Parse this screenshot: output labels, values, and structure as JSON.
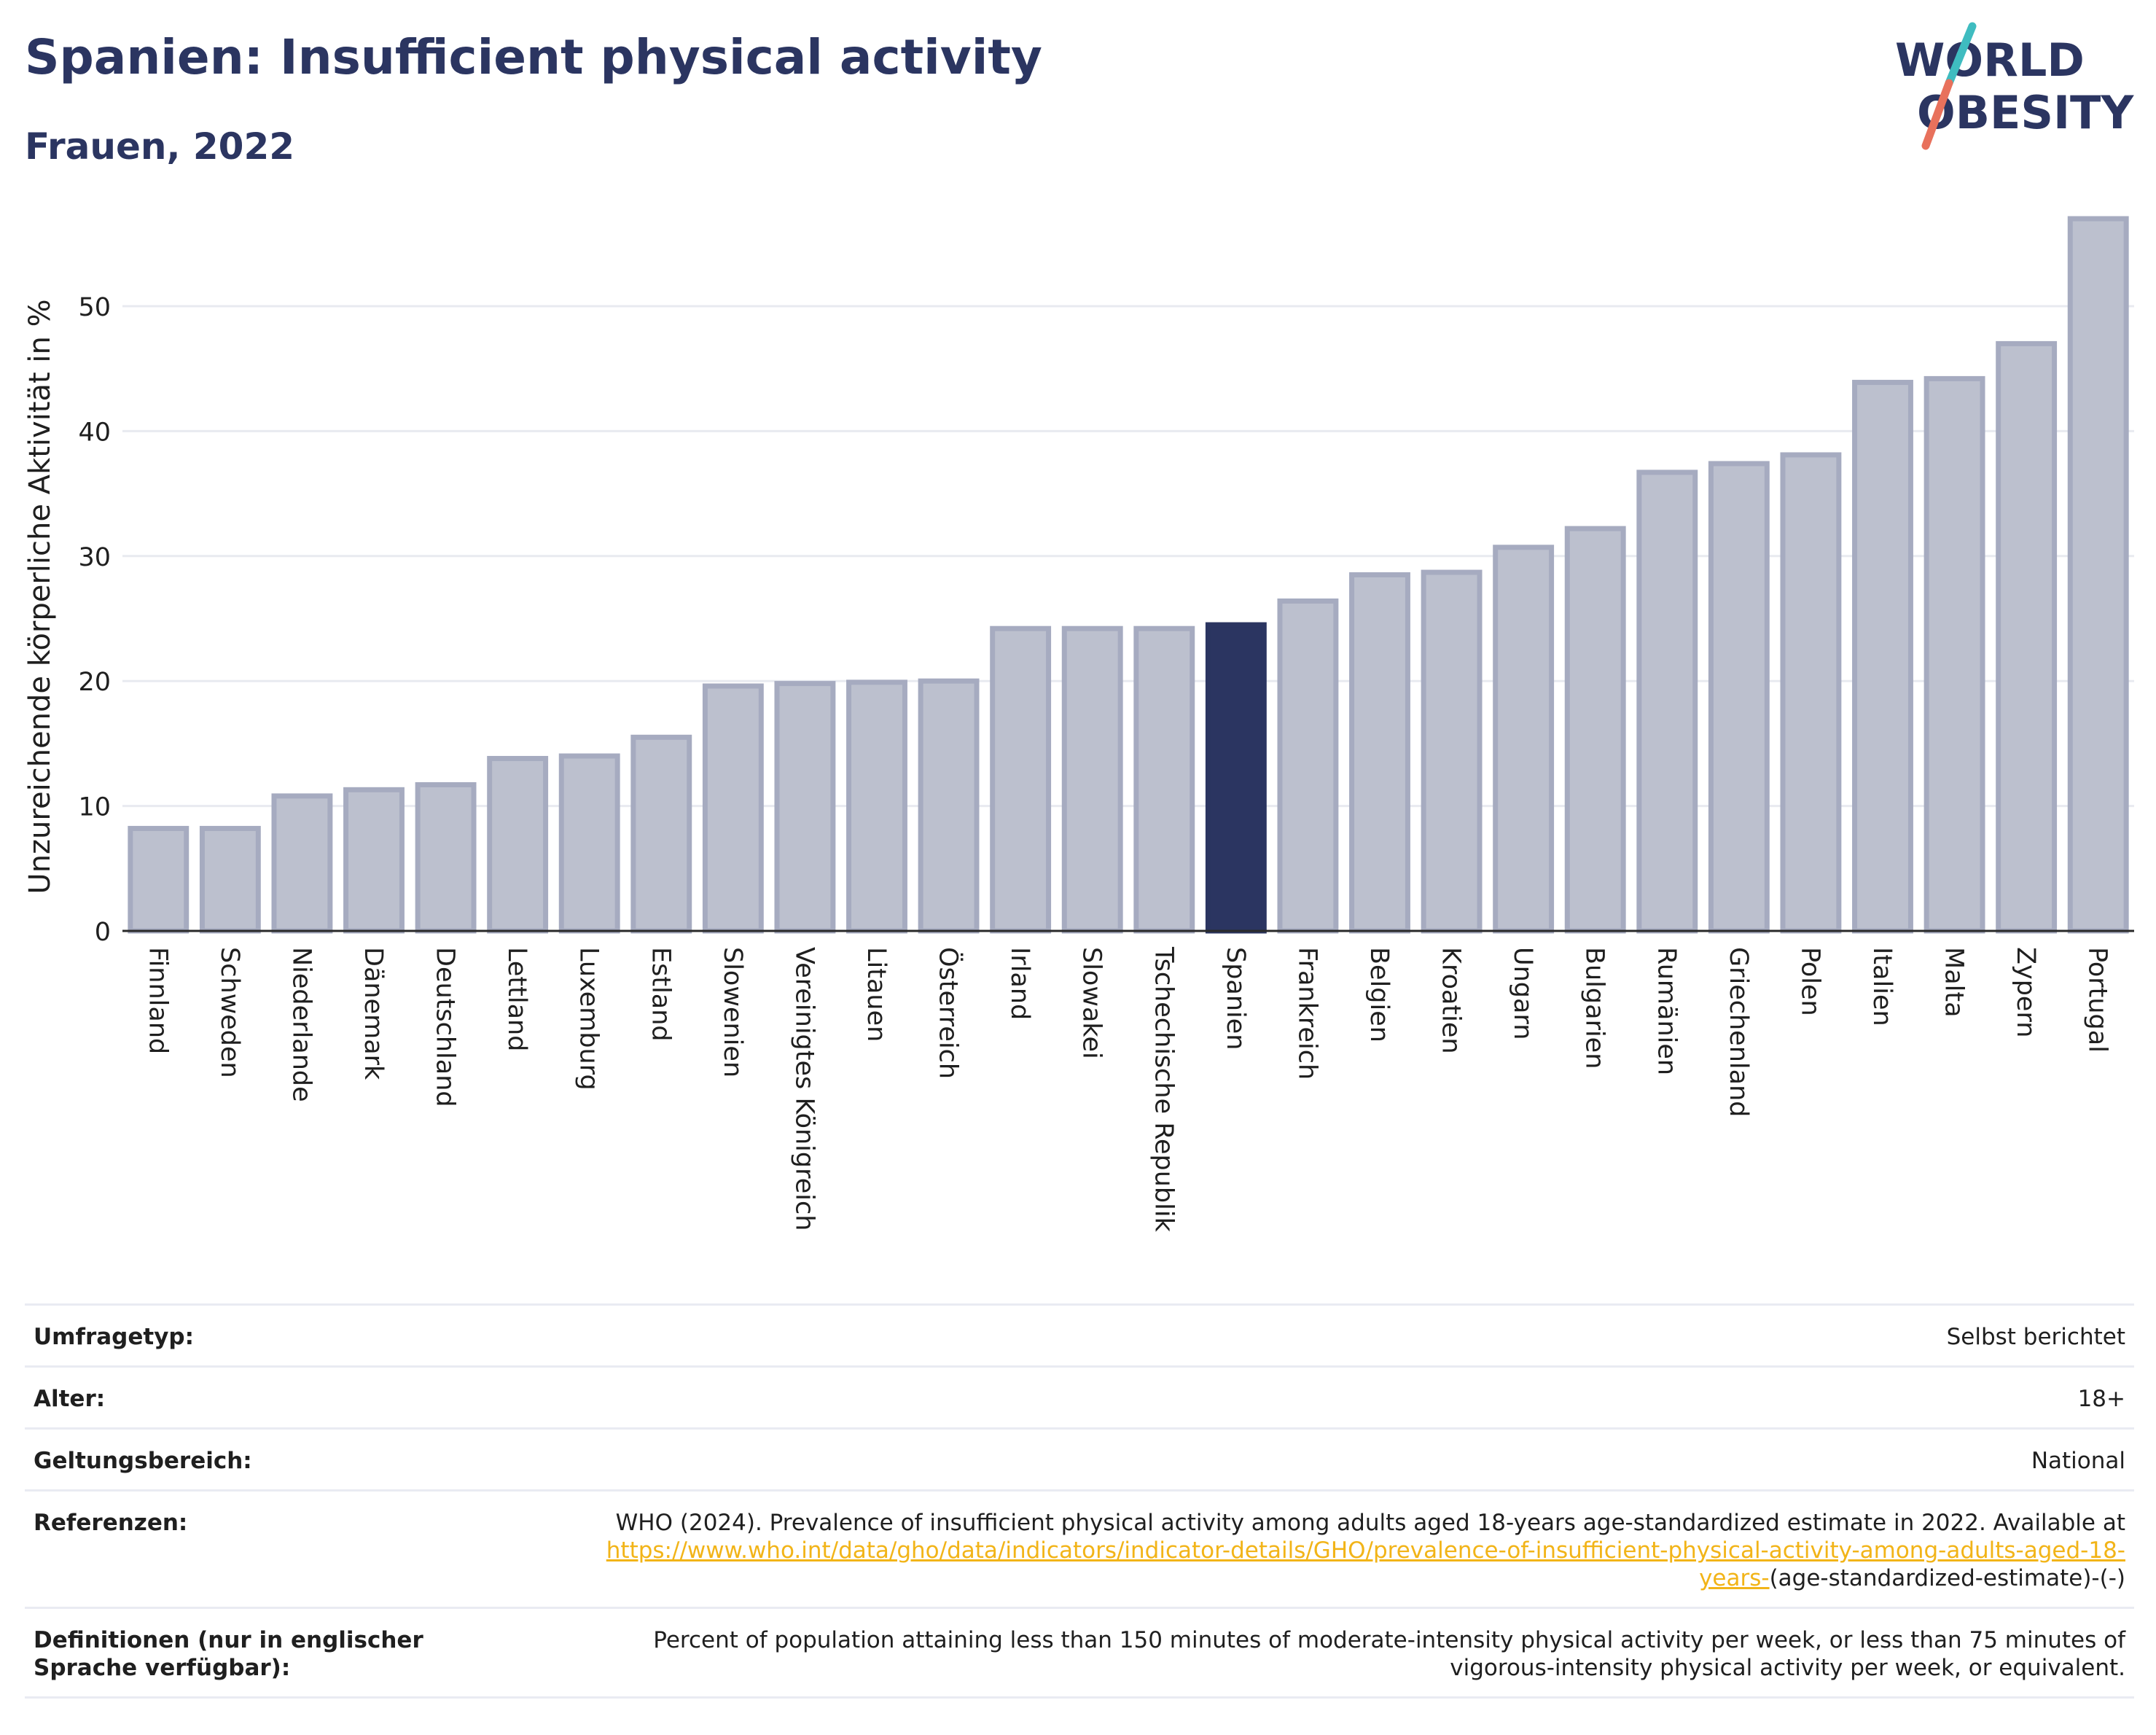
{
  "header": {
    "title": "Spanien: Insufficient physical activity",
    "subtitle": "Frauen, 2022",
    "logo_line1": "WORLD",
    "logo_line2": "OBESITY"
  },
  "colors": {
    "bar": "#bcc0ce",
    "bar_stroke": "#a6abc0",
    "highlight": "#2b3561",
    "text": "#1f1f1f",
    "link": "#f2b418",
    "logo_slash_teal": "#3fbcc0",
    "logo_slash_coral": "#e8715c"
  },
  "chart_data": {
    "type": "bar",
    "ylabel": "Unzureichende körperliche Aktivität in %",
    "ylim": [
      0,
      57
    ],
    "yticks": [
      0,
      10,
      20,
      30,
      40,
      50
    ],
    "grid": true,
    "highlight": "Spanien",
    "categories": [
      "Finnland",
      "Schweden",
      "Niederlande",
      "Dänemark",
      "Deutschland",
      "Lettland",
      "Luxemburg",
      "Estland",
      "Slowenien",
      "Vereinigtes Königreich",
      "Litauen",
      "Österreich",
      "Irland",
      "Slowakei",
      "Tschechische Republik",
      "Spanien",
      "Frankreich",
      "Belgien",
      "Kroatien",
      "Ungarn",
      "Bulgarien",
      "Rumänien",
      "Griechenland",
      "Polen",
      "Italien",
      "Malta",
      "Zypern",
      "Portugal"
    ],
    "values": [
      8.2,
      8.2,
      10.8,
      11.3,
      11.7,
      13.8,
      14.0,
      15.5,
      19.6,
      19.8,
      19.9,
      20.0,
      24.2,
      24.2,
      24.2,
      24.5,
      26.4,
      28.5,
      28.7,
      30.7,
      32.2,
      36.7,
      37.4,
      38.1,
      43.9,
      44.2,
      47.0,
      57.0
    ]
  },
  "info": {
    "survey_type": {
      "label": "Umfragetyp:",
      "value": "Selbst berichtet"
    },
    "age": {
      "label": "Alter:",
      "value": "18+"
    },
    "scope": {
      "label": "Geltungsbereich:",
      "value": "National"
    },
    "references": {
      "label": "Referenzen:",
      "text": "WHO (2024). Prevalence of insufficient physical activity among adults aged 18-years age-standardized estimate in 2022. Available at",
      "link": "https://www.who.int/data/gho/data/indicators/indicator-details/GHO/prevalence-of-insufficient-physical-activity-among-adults-aged-18-years-",
      "suffix": "(age-standardized-estimate)-(-)"
    },
    "definitions": {
      "label": "Definitionen (nur in englischer Sprache verfügbar):",
      "value": "Percent of population attaining less than 150 minutes of moderate-intensity physical activity per week, or less than 75 minutes of vigorous-intensity physical activity per week, or equivalent."
    }
  }
}
